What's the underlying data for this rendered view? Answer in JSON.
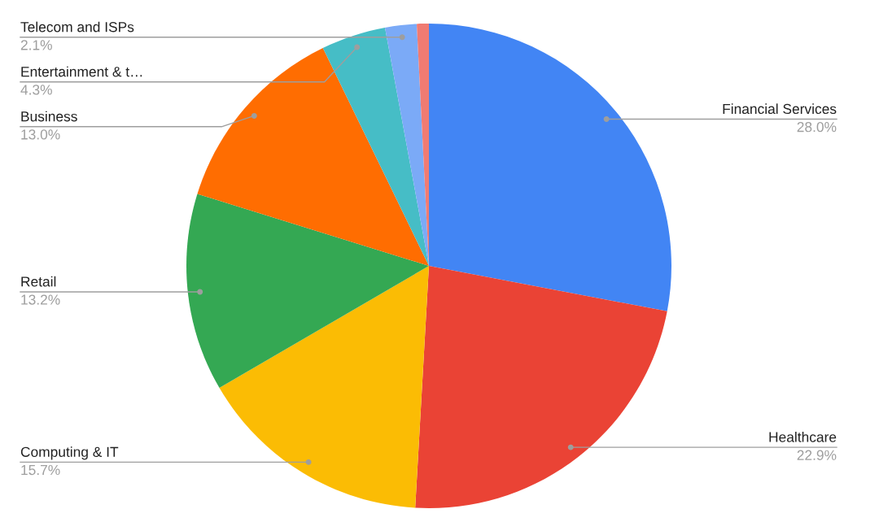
{
  "chart_data": {
    "type": "pie",
    "categories": [
      "Financial Services",
      "Healthcare",
      "Computing & IT",
      "Retail",
      "Business",
      "Entertainment & t…",
      "Telecom and ISPs",
      null
    ],
    "values": [
      28.0,
      22.9,
      15.7,
      13.2,
      13.0,
      4.3,
      2.1,
      0.8
    ],
    "value_labels": [
      "28.0%",
      "22.9%",
      "15.7%",
      "13.2%",
      "13.0%",
      "4.3%",
      "2.1%",
      null
    ],
    "colors": [
      "#4285f4",
      "#ea4335",
      "#fbbc04",
      "#34a853",
      "#ff6d01",
      "#46bdc6",
      "#7baaf7",
      "#f07b72"
    ]
  }
}
